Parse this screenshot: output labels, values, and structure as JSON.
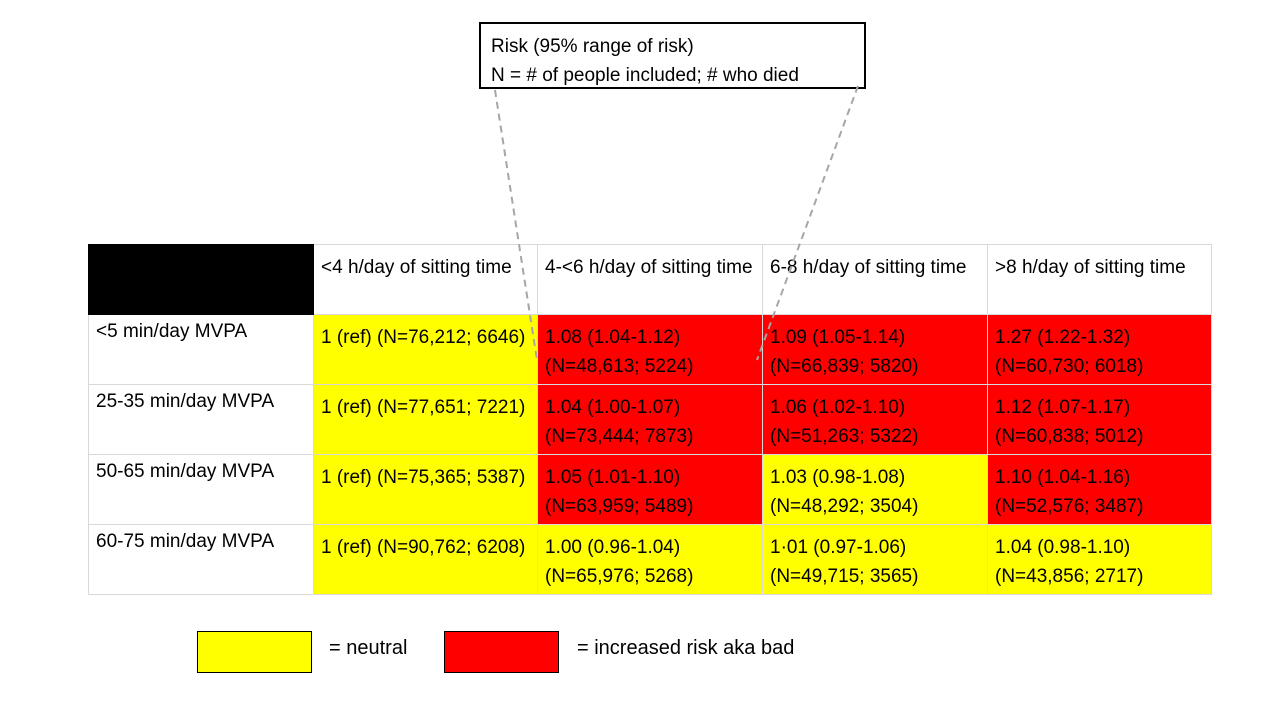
{
  "callout": {
    "line1": "Risk (95% range of risk)",
    "line2": "N = # of people included; # who died"
  },
  "colors": {
    "neutral": "#ffff00",
    "bad": "#ff0000",
    "header_bg": "#000000"
  },
  "chart_data": {
    "type": "heatmap",
    "columns": [
      "<4 h/day of sitting time",
      "4-<6 h/day of sitting time",
      "6-8 h/day of sitting time",
      ">8 h/day of sitting time"
    ],
    "rows": [
      {
        "label": "<5 min/day MVPA",
        "cells": [
          {
            "text": "1 (ref) (N=76,212; 6646)",
            "risk": 1,
            "ci": null,
            "n": 76212,
            "deaths": 6646,
            "status": "neutral"
          },
          {
            "text": "1.08 (1.04-1.12) (N=48,613; 5224)",
            "risk": 1.08,
            "ci": [
              1.04,
              1.12
            ],
            "n": 48613,
            "deaths": 5224,
            "status": "bad"
          },
          {
            "text": "1.09 (1.05-1.14) (N=66,839; 5820)",
            "risk": 1.09,
            "ci": [
              1.05,
              1.14
            ],
            "n": 66839,
            "deaths": 5820,
            "status": "bad"
          },
          {
            "text": "1.27 (1.22-1.32) (N=60,730; 6018)",
            "risk": 1.27,
            "ci": [
              1.22,
              1.32
            ],
            "n": 60730,
            "deaths": 6018,
            "status": "bad"
          }
        ]
      },
      {
        "label": "25-35 min/day MVPA",
        "cells": [
          {
            "text": "1 (ref) (N=77,651; 7221)",
            "risk": 1,
            "ci": null,
            "n": 77651,
            "deaths": 7221,
            "status": "neutral"
          },
          {
            "text": "1.04 (1.00-1.07) (N=73,444; 7873)",
            "risk": 1.04,
            "ci": [
              1.0,
              1.07
            ],
            "n": 73444,
            "deaths": 7873,
            "status": "bad"
          },
          {
            "text": "1.06 (1.02-1.10) (N=51,263; 5322)",
            "risk": 1.06,
            "ci": [
              1.02,
              1.1
            ],
            "n": 51263,
            "deaths": 5322,
            "status": "bad"
          },
          {
            "text": "1.12 (1.07-1.17) (N=60,838; 5012)",
            "risk": 1.12,
            "ci": [
              1.07,
              1.17
            ],
            "n": 60838,
            "deaths": 5012,
            "status": "bad"
          }
        ]
      },
      {
        "label": "50-65 min/day MVPA",
        "cells": [
          {
            "text": "1 (ref) (N=75,365; 5387)",
            "risk": 1,
            "ci": null,
            "n": 75365,
            "deaths": 5387,
            "status": "neutral"
          },
          {
            "text": "1.05 (1.01-1.10) (N=63,959; 5489)",
            "risk": 1.05,
            "ci": [
              1.01,
              1.1
            ],
            "n": 63959,
            "deaths": 5489,
            "status": "bad"
          },
          {
            "text": "1.03 (0.98-1.08) (N=48,292; 3504)",
            "risk": 1.03,
            "ci": [
              0.98,
              1.08
            ],
            "n": 48292,
            "deaths": 3504,
            "status": "neutral"
          },
          {
            "text": "1.10 (1.04-1.16) (N=52,576; 3487)",
            "risk": 1.1,
            "ci": [
              1.04,
              1.16
            ],
            "n": 52576,
            "deaths": 3487,
            "status": "bad"
          }
        ]
      },
      {
        "label": "60-75 min/day MVPA",
        "cells": [
          {
            "text": "1 (ref) (N=90,762; 6208)",
            "risk": 1,
            "ci": null,
            "n": 90762,
            "deaths": 6208,
            "status": "neutral"
          },
          {
            "text": "1.00 (0.96-1.04) (N=65,976; 5268)",
            "risk": 1.0,
            "ci": [
              0.96,
              1.04
            ],
            "n": 65976,
            "deaths": 5268,
            "status": "neutral"
          },
          {
            "text": "1·01 (0.97-1.06) (N=49,715; 3565)",
            "risk": 1.01,
            "ci": [
              0.97,
              1.06
            ],
            "n": 49715,
            "deaths": 3565,
            "status": "neutral"
          },
          {
            "text": "1.04 (0.98-1.10) (N=43,856; 2717)",
            "risk": 1.04,
            "ci": [
              0.98,
              1.1
            ],
            "n": 43856,
            "deaths": 2717,
            "status": "neutral"
          }
        ]
      }
    ]
  },
  "legend": {
    "neutral_label": "= neutral",
    "bad_label": "= increased risk aka bad"
  }
}
